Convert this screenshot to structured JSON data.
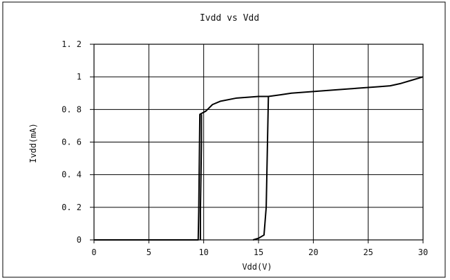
{
  "chart_data": {
    "type": "line",
    "title": "Ivdd vs Vdd",
    "xlabel": "Vdd(V)",
    "ylabel": "Ivdd(mA)",
    "xlim": [
      0,
      30
    ],
    "ylim": [
      0,
      1.2
    ],
    "x_ticks": [
      0,
      5,
      10,
      15,
      20,
      25,
      30
    ],
    "y_ticks": [
      0,
      0.2,
      0.4,
      0.6,
      0.8,
      1,
      1.2
    ],
    "x_tick_labels": [
      "0",
      "5",
      "10",
      "15",
      "20",
      "25",
      "30"
    ],
    "y_tick_labels": [
      "0",
      "0. 2",
      "0. 4",
      "0. 6",
      "0. 8",
      "1",
      "1. 2"
    ],
    "grid": true,
    "series": [
      {
        "values": [
          [
            0,
            0
          ],
          [
            9.5,
            0
          ],
          [
            9.55,
            0.18
          ],
          [
            9.65,
            0.77
          ],
          [
            10.2,
            0.79
          ],
          [
            10.8,
            0.83
          ],
          [
            11.5,
            0.85
          ],
          [
            13,
            0.87
          ],
          [
            15,
            0.88
          ],
          [
            15.9,
            0.88
          ],
          [
            17,
            0.89
          ],
          [
            18,
            0.9
          ],
          [
            20,
            0.91
          ],
          [
            22,
            0.92
          ],
          [
            24,
            0.93
          ],
          [
            26,
            0.94
          ],
          [
            27,
            0.945
          ],
          [
            28,
            0.96
          ],
          [
            29,
            0.98
          ],
          [
            30,
            1.0
          ]
        ]
      },
      {
        "values": [
          [
            9.8,
            0.77
          ],
          [
            9.8,
            0.6
          ],
          [
            9.7,
            0.18
          ],
          [
            9.7,
            0
          ]
        ]
      },
      {
        "values": [
          [
            14.5,
            0
          ],
          [
            15.0,
            0.01
          ],
          [
            15.5,
            0.03
          ],
          [
            15.7,
            0.2
          ],
          [
            15.9,
            0.88
          ]
        ]
      }
    ]
  }
}
